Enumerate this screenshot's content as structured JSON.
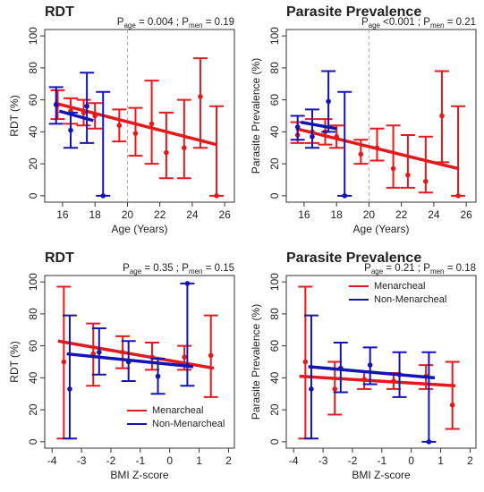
{
  "chart_data": [
    {
      "type": "errorbar",
      "title": "RDT",
      "annotation": [
        "P",
        "age",
        " = 0.004 ; P",
        "men",
        " = 0.19"
      ],
      "x_label": "Age (Years)",
      "y_label": "RDT (%)",
      "xlim": [
        14.9,
        26.6
      ],
      "xticks": [
        16,
        18,
        20,
        22,
        24,
        26
      ],
      "ylim": [
        -4,
        104
      ],
      "yticks": [
        0,
        20,
        40,
        60,
        80,
        100
      ],
      "vline": 20,
      "series": [
        {
          "color": "#e31a1c",
          "x": [
            15.7,
            16.5,
            17.3,
            18.0,
            19.5,
            20.5,
            21.5,
            22.4,
            23.5,
            24.5,
            25.5
          ],
          "values": [
            57,
            53,
            52,
            50,
            44,
            39,
            45,
            27,
            30,
            62,
            0
          ],
          "lower": [
            48,
            45,
            44,
            42,
            34,
            25,
            20,
            11,
            11,
            30,
            0
          ],
          "upper": [
            66,
            61,
            60,
            58,
            54,
            55,
            72,
            52,
            60,
            86,
            56
          ],
          "fit": {
            "x": [
              15.5,
              25.5
            ],
            "y": [
              58,
              32
            ]
          }
        },
        {
          "color": "#1414b4",
          "x": [
            15.6,
            16.5,
            17.5,
            18.5
          ],
          "values": [
            57,
            41,
            56,
            0
          ],
          "lower": [
            45,
            30,
            33,
            0
          ],
          "upper": [
            68,
            52,
            77,
            65
          ],
          "fit": {
            "x": [
              15.8,
              17.9
            ],
            "y": [
              53,
              47
            ]
          }
        }
      ]
    },
    {
      "type": "errorbar",
      "title": "Parasite Prevalence",
      "annotation": [
        "P",
        "age",
        " <0.001 ; P",
        "men",
        " = 0.21"
      ],
      "x_label": "Age (Years)",
      "y_label": "Parasite Prevalence (%)",
      "xlim": [
        14.9,
        26.6
      ],
      "xticks": [
        16,
        18,
        20,
        22,
        24,
        26
      ],
      "ylim": [
        -4,
        104
      ],
      "yticks": [
        0,
        20,
        40,
        60,
        80,
        100
      ],
      "vline": 20,
      "series": [
        {
          "color": "#e31a1c",
          "x": [
            15.6,
            16.5,
            17.3,
            18.0,
            19.5,
            20.5,
            21.5,
            22.4,
            23.5,
            24.5,
            25.5
          ],
          "values": [
            38,
            40,
            40,
            37,
            26,
            30,
            17,
            13,
            9,
            50,
            0
          ],
          "lower": [
            33,
            33,
            32,
            30,
            20,
            22,
            5,
            5,
            2,
            21,
            0
          ],
          "upper": [
            46,
            48,
            48,
            44,
            35,
            42,
            44,
            38,
            37,
            78,
            56
          ],
          "fit": {
            "x": [
              15.5,
              25.5
            ],
            "y": [
              42,
              17
            ]
          }
        },
        {
          "color": "#1414b4",
          "x": [
            15.6,
            16.5,
            17.5,
            18.5
          ],
          "values": [
            43,
            37,
            59,
            0
          ],
          "lower": [
            35,
            30,
            40,
            0
          ],
          "upper": [
            50,
            54,
            78,
            65
          ],
          "fit": {
            "x": [
              15.8,
              18.0
            ],
            "y": [
              46,
              42
            ]
          }
        }
      ]
    },
    {
      "type": "errorbar",
      "title": "RDT",
      "annotation": [
        "P",
        "age",
        " = 0.35 ; P",
        "men",
        " = 0.15"
      ],
      "x_label": "BMI Z-score",
      "y_label": "RDT (%)",
      "xlim": [
        -4.25,
        2.2
      ],
      "xticks": [
        -4,
        -3,
        -2,
        -1,
        0,
        1,
        2
      ],
      "ylim": [
        -4,
        104
      ],
      "yticks": [
        0,
        20,
        40,
        60,
        80,
        100
      ],
      "legend": "bottomright",
      "series": [
        {
          "name": "Menarcheal",
          "color": "#e31a1c",
          "x": [
            -3.6,
            -2.6,
            -1.6,
            -0.6,
            0.5,
            1.4
          ],
          "values": [
            50,
            55,
            56,
            53,
            53,
            54
          ],
          "lower": [
            2,
            35,
            46,
            45,
            45,
            28
          ],
          "upper": [
            97,
            74,
            66,
            62,
            60,
            79
          ],
          "fit": {
            "x": [
              -3.8,
              1.5
            ],
            "y": [
              63,
              46
            ]
          }
        },
        {
          "name": "Non-Menarcheal",
          "color": "#1414b4",
          "x": [
            -3.4,
            -2.4,
            -1.4,
            -0.4,
            0.6
          ],
          "values": [
            33,
            56,
            50,
            41,
            99
          ],
          "lower": [
            2,
            42,
            38,
            30,
            35
          ],
          "upper": [
            79,
            71,
            63,
            52,
            99
          ],
          "fit": {
            "x": [
              -3.5,
              0.8
            ],
            "y": [
              55,
              47
            ]
          }
        }
      ]
    },
    {
      "type": "errorbar",
      "title": "Parasite Prevalence",
      "annotation": [
        "P",
        "age",
        " = 0.21 ; P",
        "men",
        " = 0.18"
      ],
      "x_label": "BMI Z-score",
      "y_label": "Parasite Prevalence (%)",
      "xlim": [
        -4.25,
        2.2
      ],
      "xticks": [
        -4,
        -3,
        -2,
        -1,
        0,
        1,
        2
      ],
      "ylim": [
        -4,
        104
      ],
      "yticks": [
        0,
        20,
        40,
        60,
        80,
        100
      ],
      "legend": "top",
      "series": [
        {
          "name": "Menarcheal",
          "color": "#e31a1c",
          "x": [
            -3.6,
            -2.6,
            -1.6,
            -0.6,
            0.5,
            1.4
          ],
          "values": [
            50,
            33,
            39,
            38,
            41,
            23
          ],
          "lower": [
            2,
            17,
            33,
            33,
            33,
            8
          ],
          "upper": [
            97,
            50,
            44,
            43,
            48,
            50
          ],
          "fit": {
            "x": [
              -3.8,
              1.5
            ],
            "y": [
              41,
              35
            ]
          }
        },
        {
          "name": "Non-Menarcheal",
          "color": "#1414b4",
          "x": [
            -3.4,
            -2.4,
            -1.4,
            -0.4,
            0.6
          ],
          "values": [
            33,
            46,
            48,
            42,
            0
          ],
          "lower": [
            2,
            31,
            36,
            28,
            0
          ],
          "upper": [
            79,
            62,
            59,
            56,
            56
          ],
          "fit": {
            "x": [
              -3.5,
              0.8
            ],
            "y": [
              47,
              40
            ]
          }
        }
      ]
    }
  ]
}
